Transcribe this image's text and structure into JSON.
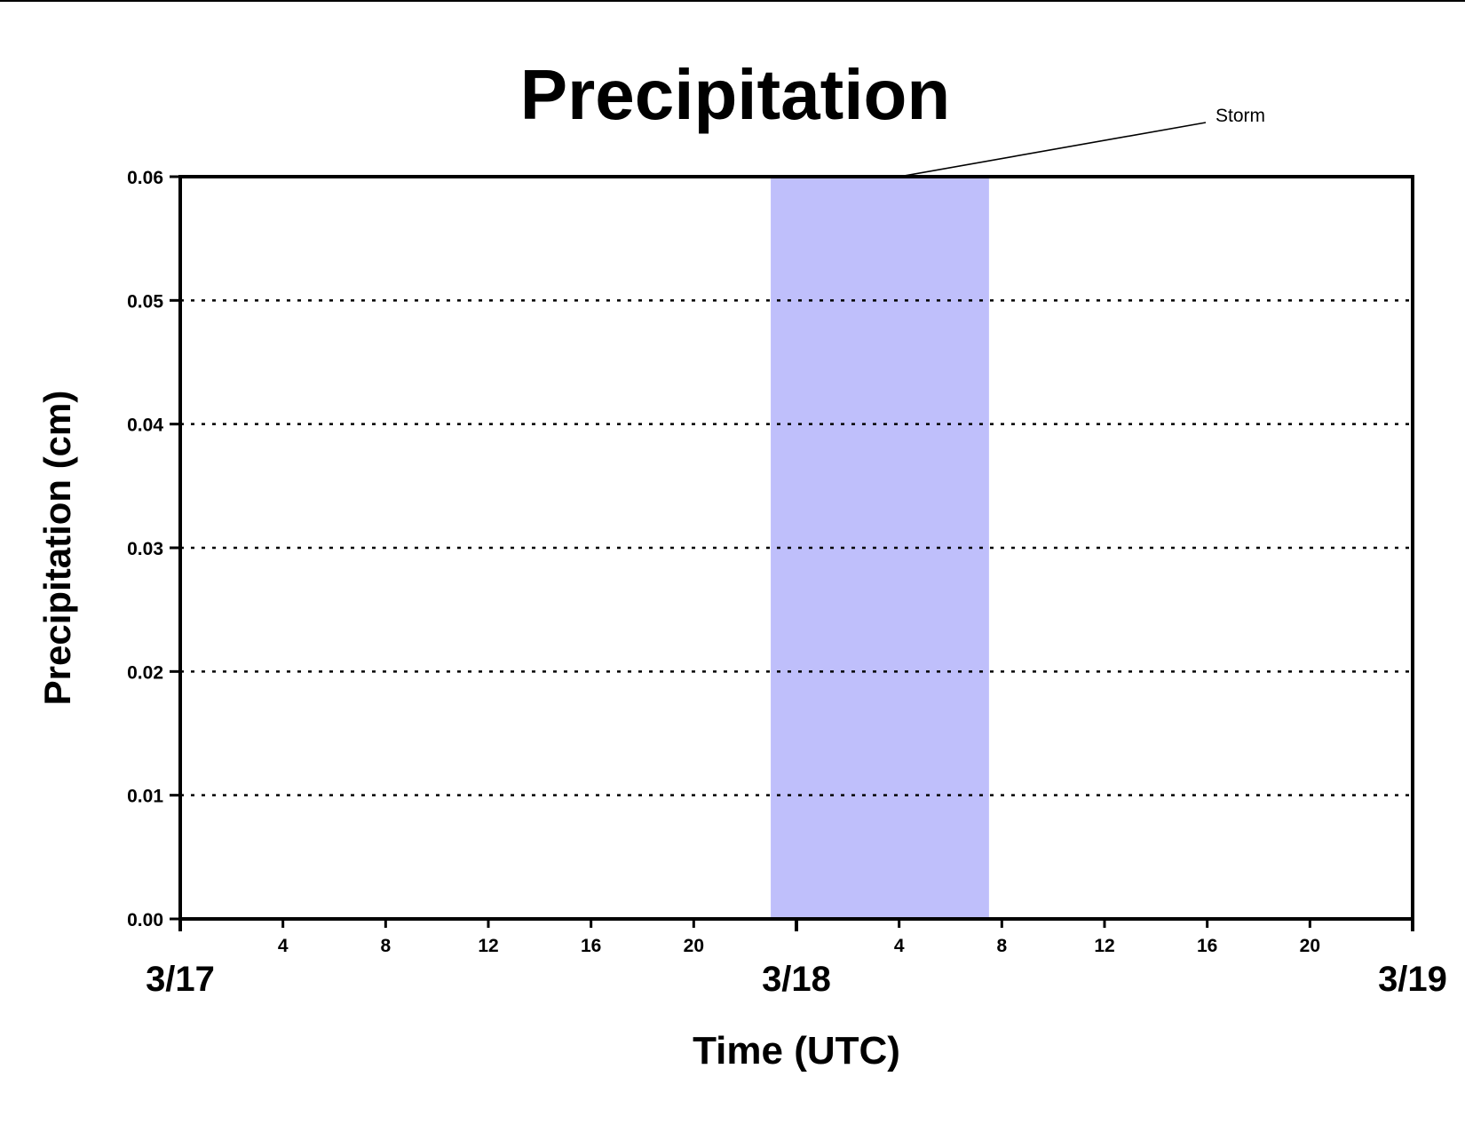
{
  "chart_data": {
    "type": "line",
    "title": "Precipitation",
    "xlabel": "Time (UTC)",
    "ylabel": "Precipitation (cm)",
    "x_unit": "hours",
    "xlim": [
      "3/17 0:00",
      "3/19 0:00"
    ],
    "ylim": [
      0,
      0.06
    ],
    "y_ticks": [
      "0.00",
      "0.01",
      "0.02",
      "0.03",
      "0.04",
      "0.05",
      "0.06"
    ],
    "x_hour_ticks": [
      {
        "time": "3/17 4:00",
        "label": "4"
      },
      {
        "time": "3/17 8:00",
        "label": "8"
      },
      {
        "time": "3/17 12:00",
        "label": "12"
      },
      {
        "time": "3/17 16:00",
        "label": "16"
      },
      {
        "time": "3/17 20:00",
        "label": "20"
      },
      {
        "time": "3/18 4:00",
        "label": "4"
      },
      {
        "time": "3/18 8:00",
        "label": "8"
      },
      {
        "time": "3/18 12:00",
        "label": "12"
      },
      {
        "time": "3/18 16:00",
        "label": "16"
      },
      {
        "time": "3/18 20:00",
        "label": "20"
      }
    ],
    "x_day_ticks": [
      {
        "time": "3/17 0:00",
        "label": "3/17"
      },
      {
        "time": "3/18 0:00",
        "label": "3/18"
      },
      {
        "time": "3/19 0:00",
        "label": "3/19"
      }
    ],
    "grid": "horizontal dotted",
    "series": [
      {
        "color": "#8b1a1a",
        "x": [
          "3/17 0:00",
          "3/19 0:00"
        ],
        "y": [
          0,
          0
        ]
      }
    ],
    "shaded_region": {
      "start": "3/17 23:00",
      "end": "3/18 7:30",
      "color": "#bfbffb"
    },
    "annotation": {
      "text": "Storm",
      "points_to": "3/18 4:00"
    }
  }
}
